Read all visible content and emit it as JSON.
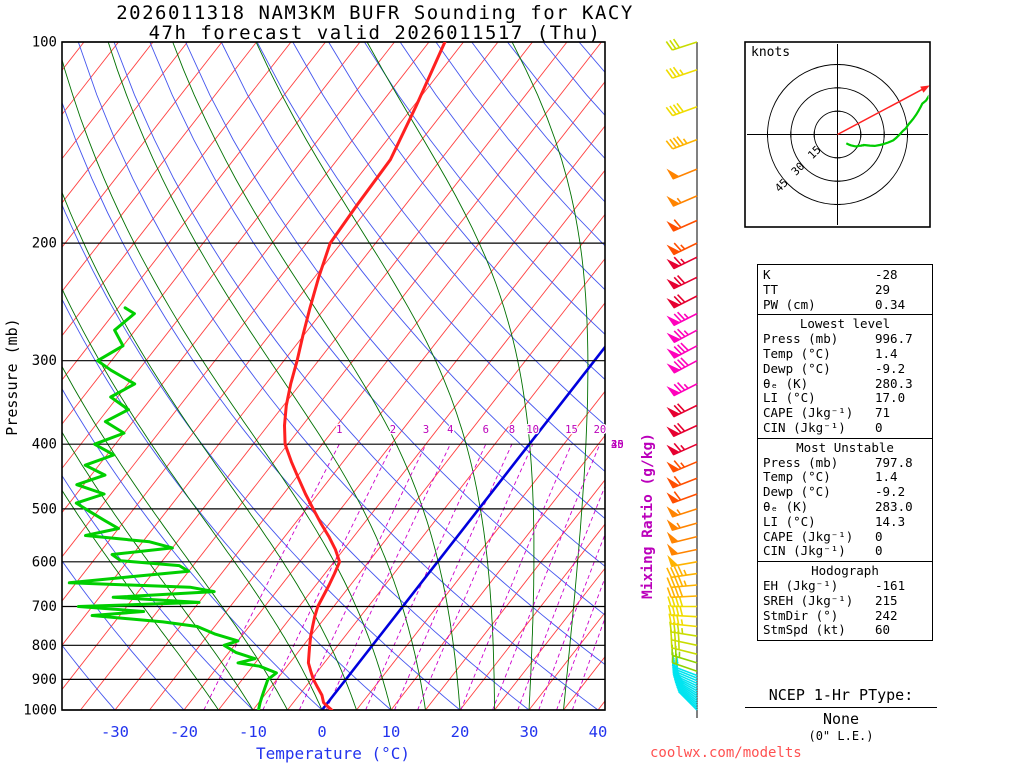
{
  "title": {
    "line1": "2026011318 NAM3KM BUFR Sounding for KACY",
    "line2": "47h forecast valid 2026011517 (Thu)"
  },
  "watermark": "coolwx.com/modelts",
  "axes": {
    "pressure_label": "Pressure (mb)",
    "temperature_label": "Temperature (°C)",
    "mixing_ratio_label": "Mixing Ratio (g/kg)",
    "pressure_ticks": [
      100,
      200,
      300,
      400,
      500,
      600,
      700,
      800,
      900,
      1000
    ],
    "temperature_ticks": [
      -30,
      -20,
      -10,
      0,
      10,
      20,
      30,
      40
    ]
  },
  "hodograph": {
    "units_label": "knots",
    "ring_labels": [
      15,
      30,
      45
    ],
    "ring_step_kt": 15,
    "trace_min_pressure_mb": 250,
    "storm_dir_deg": 242,
    "storm_spd_kt": 60
  },
  "indices": {
    "top": [
      [
        "K",
        "-28"
      ],
      [
        "TT",
        "29"
      ],
      [
        "PW (cm)",
        "0.34"
      ]
    ],
    "sections": [
      {
        "header": "Lowest level",
        "rows": [
          [
            "Press (mb)",
            "996.7"
          ],
          [
            "Temp (°C)",
            "1.4"
          ],
          [
            "Dewp (°C)",
            "-9.2"
          ],
          [
            "θₑ (K)",
            "280.3"
          ],
          [
            "LI (°C)",
            "17.0"
          ],
          [
            "CAPE (Jkg⁻¹)",
            "71"
          ],
          [
            "CIN (Jkg⁻¹)",
            "0"
          ]
        ]
      },
      {
        "header": "Most Unstable",
        "rows": [
          [
            "Press (mb)",
            "797.8"
          ],
          [
            "Temp (°C)",
            "1.4"
          ],
          [
            "Dewp (°C)",
            "-9.2"
          ],
          [
            "θₑ (K)",
            "283.0"
          ],
          [
            "LI (°C)",
            "14.3"
          ],
          [
            "CAPE (Jkg⁻¹)",
            "0"
          ],
          [
            "CIN (Jkg⁻¹)",
            "0"
          ]
        ]
      },
      {
        "header": "Hodograph",
        "rows": [
          [
            "EH (Jkg⁻¹)",
            "-161"
          ],
          [
            "SREH (Jkg⁻¹)",
            "215"
          ],
          [
            "StmDir (°)",
            "242"
          ],
          [
            "StmSpd (kt)",
            "60"
          ]
        ]
      }
    ]
  },
  "ptype": {
    "title": "NCEP 1-Hr PType:",
    "value": "None",
    "note": "(0\" L.E.)"
  },
  "chart_data": {
    "type": "skewt_log_p_sounding",
    "pressure_range_mb": [
      100,
      1000
    ],
    "temperature_axis_c": [
      -30,
      40
    ],
    "isotherm_step_c": 5,
    "freezing_line_c": 0,
    "dry_adiabat_theta_c": {
      "min": -40,
      "max": 180,
      "step": 10
    },
    "moist_adiabat_surface_temps_c": [
      -15,
      -10,
      -5,
      0,
      5,
      10,
      15,
      20,
      25,
      30,
      35
    ],
    "mixing_ratio_lines_gkg": [
      1,
      2,
      3,
      4,
      6,
      8,
      10,
      15,
      20,
      25,
      30,
      35,
      40
    ],
    "temperature_profile": [
      [
        1000,
        1.4
      ],
      [
        985,
        0.2
      ],
      [
        975,
        -0.6
      ],
      [
        950,
        -1.7
      ],
      [
        925,
        -3.2
      ],
      [
        900,
        -4.7
      ],
      [
        875,
        -6.0
      ],
      [
        850,
        -7.3
      ],
      [
        825,
        -8.2
      ],
      [
        800,
        -9.1
      ],
      [
        775,
        -10.0
      ],
      [
        750,
        -10.8
      ],
      [
        725,
        -11.6
      ],
      [
        700,
        -12.3
      ],
      [
        675,
        -12.7
      ],
      [
        650,
        -13.1
      ],
      [
        625,
        -13.6
      ],
      [
        600,
        -14.2
      ],
      [
        575,
        -16.2
      ],
      [
        550,
        -18.6
      ],
      [
        525,
        -21.3
      ],
      [
        500,
        -24.0
      ],
      [
        475,
        -26.8
      ],
      [
        450,
        -29.6
      ],
      [
        425,
        -32.5
      ],
      [
        400,
        -35.4
      ],
      [
        375,
        -37.6
      ],
      [
        350,
        -39.6
      ],
      [
        325,
        -41.4
      ],
      [
        300,
        -43.1
      ],
      [
        275,
        -45.1
      ],
      [
        250,
        -47.2
      ],
      [
        225,
        -49.4
      ],
      [
        200,
        -51.6
      ],
      [
        175,
        -52.0
      ],
      [
        150,
        -52.3
      ],
      [
        125,
        -54.6
      ],
      [
        100,
        -57.7
      ]
    ],
    "dewpoint_profile": [
      [
        1000,
        -9.2
      ],
      [
        975,
        -9.8
      ],
      [
        950,
        -10.3
      ],
      [
        925,
        -10.8
      ],
      [
        900,
        -11.3
      ],
      [
        880,
        -10.8
      ],
      [
        860,
        -14.0
      ],
      [
        850,
        -17.5
      ],
      [
        838,
        -15.5
      ],
      [
        820,
        -19.0
      ],
      [
        800,
        -21.5
      ],
      [
        788,
        -20.0
      ],
      [
        770,
        -24.0
      ],
      [
        750,
        -27.5
      ],
      [
        738,
        -33.0
      ],
      [
        722,
        -44.0
      ],
      [
        712,
        -37.0
      ],
      [
        700,
        -47.0
      ],
      [
        690,
        -30.0
      ],
      [
        678,
        -43.0
      ],
      [
        665,
        -29.0
      ],
      [
        655,
        -33.0
      ],
      [
        645,
        -51.0
      ],
      [
        632,
        -43.0
      ],
      [
        620,
        -35.0
      ],
      [
        608,
        -37.0
      ],
      [
        598,
        -46.0
      ],
      [
        585,
        -48.0
      ],
      [
        572,
        -40.0
      ],
      [
        560,
        -44.0
      ],
      [
        548,
        -54.0
      ],
      [
        535,
        -50.0
      ],
      [
        520,
        -53.0
      ],
      [
        505,
        -56.0
      ],
      [
        490,
        -59.0
      ],
      [
        475,
        -56.0
      ],
      [
        460,
        -61.0
      ],
      [
        445,
        -58.0
      ],
      [
        430,
        -62.0
      ],
      [
        415,
        -59.0
      ],
      [
        400,
        -63.0
      ],
      [
        385,
        -60.0
      ],
      [
        370,
        -64.0
      ],
      [
        355,
        -62.0
      ],
      [
        340,
        -66.0
      ],
      [
        325,
        -64.0
      ],
      [
        310,
        -69.0
      ],
      [
        300,
        -72.0
      ],
      [
        285,
        -70.0
      ],
      [
        270,
        -73.0
      ],
      [
        255,
        -72.0
      ],
      [
        250,
        -74.0
      ]
    ],
    "winds_p_dir_spd": [
      [
        1000,
        315,
        8
      ],
      [
        992,
        313,
        9
      ],
      [
        984,
        311,
        10
      ],
      [
        976,
        309,
        11
      ],
      [
        968,
        307,
        12
      ],
      [
        960,
        305,
        13
      ],
      [
        952,
        303,
        14
      ],
      [
        944,
        301,
        15
      ],
      [
        936,
        299,
        15
      ],
      [
        928,
        297,
        16
      ],
      [
        920,
        295,
        17
      ],
      [
        912,
        294,
        17
      ],
      [
        904,
        293,
        18
      ],
      [
        896,
        292,
        18
      ],
      [
        888,
        291,
        19
      ],
      [
        875,
        289,
        22
      ],
      [
        850,
        287,
        25
      ],
      [
        825,
        284,
        28
      ],
      [
        800,
        282,
        30
      ],
      [
        775,
        279,
        33
      ],
      [
        750,
        276,
        36
      ],
      [
        725,
        273,
        38
      ],
      [
        700,
        270,
        40
      ],
      [
        675,
        267,
        42
      ],
      [
        650,
        265,
        44
      ],
      [
        625,
        262,
        46
      ],
      [
        600,
        260,
        48
      ],
      [
        575,
        258,
        50
      ],
      [
        550,
        256,
        52
      ],
      [
        525,
        254,
        54
      ],
      [
        500,
        252,
        56
      ],
      [
        475,
        250,
        58
      ],
      [
        450,
        249,
        61
      ],
      [
        425,
        247,
        64
      ],
      [
        400,
        246,
        66
      ],
      [
        375,
        245,
        69
      ],
      [
        350,
        244,
        72
      ],
      [
        325,
        243,
        75
      ],
      [
        300,
        242,
        80
      ],
      [
        285,
        242,
        78
      ],
      [
        270,
        242,
        76
      ],
      [
        255,
        243,
        73
      ],
      [
        240,
        243,
        71
      ],
      [
        225,
        244,
        68
      ],
      [
        210,
        244,
        66
      ],
      [
        200,
        244,
        63
      ],
      [
        185,
        246,
        58
      ],
      [
        170,
        247,
        55
      ],
      [
        155,
        248,
        50
      ],
      [
        140,
        249,
        46
      ],
      [
        125,
        250,
        41
      ],
      [
        110,
        251,
        36
      ],
      [
        100,
        252,
        31
      ]
    ],
    "colors": {
      "isotherm": "#ff4040",
      "freezing_isotherm": "#0000dd",
      "dry_adiabat": "#4455ee",
      "moist_adiabat": "#007000",
      "mixing_ratio": "#cc00cc",
      "temperature_curve": "#ff2020",
      "dewpoint_curve": "#00cf00",
      "hodograph_trace": "#00cc00",
      "storm_motion": "#ff2222",
      "temp_axis_text": "#2233ee",
      "mixing_text": "#bb00bb"
    },
    "barb_speed_colors": [
      {
        "max": 19,
        "color": "#00e4f0"
      },
      {
        "max": 27,
        "color": "#8fd400"
      },
      {
        "max": 34,
        "color": "#c8dc00"
      },
      {
        "max": 41,
        "color": "#f0dc00"
      },
      {
        "max": 49,
        "color": "#ffb300"
      },
      {
        "max": 57,
        "color": "#ff8400"
      },
      {
        "max": 64,
        "color": "#ff4f00"
      },
      {
        "max": 72,
        "color": "#e60030"
      },
      {
        "max": 999,
        "color": "#ff00bb"
      }
    ]
  }
}
